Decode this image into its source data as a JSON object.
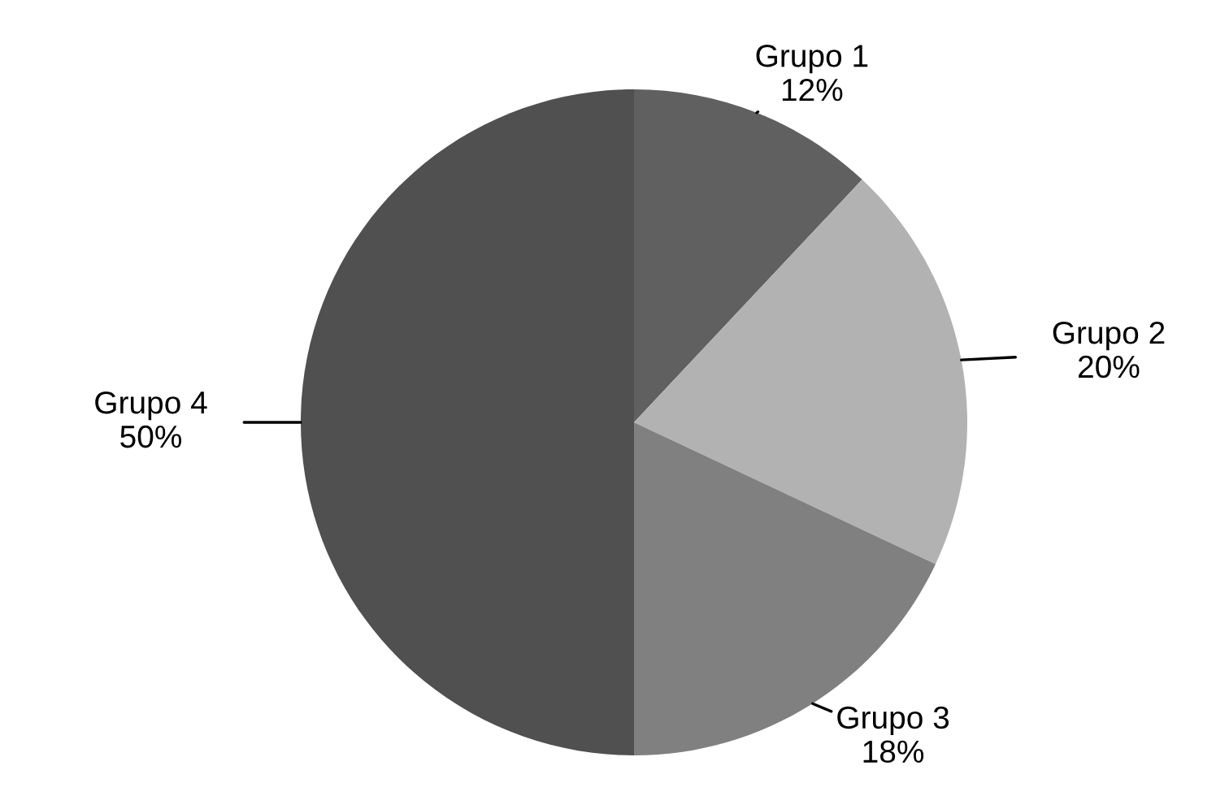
{
  "chart_data": {
    "type": "pie",
    "categories": [
      "Grupo 1",
      "Grupo 2",
      "Grupo 3",
      "Grupo 4"
    ],
    "values": [
      12,
      20,
      18,
      50
    ],
    "colors": [
      "#606060",
      "#b2b2b2",
      "#808080",
      "#505050"
    ],
    "value_labels": [
      "12%",
      "20%",
      "18%",
      "50%"
    ]
  }
}
